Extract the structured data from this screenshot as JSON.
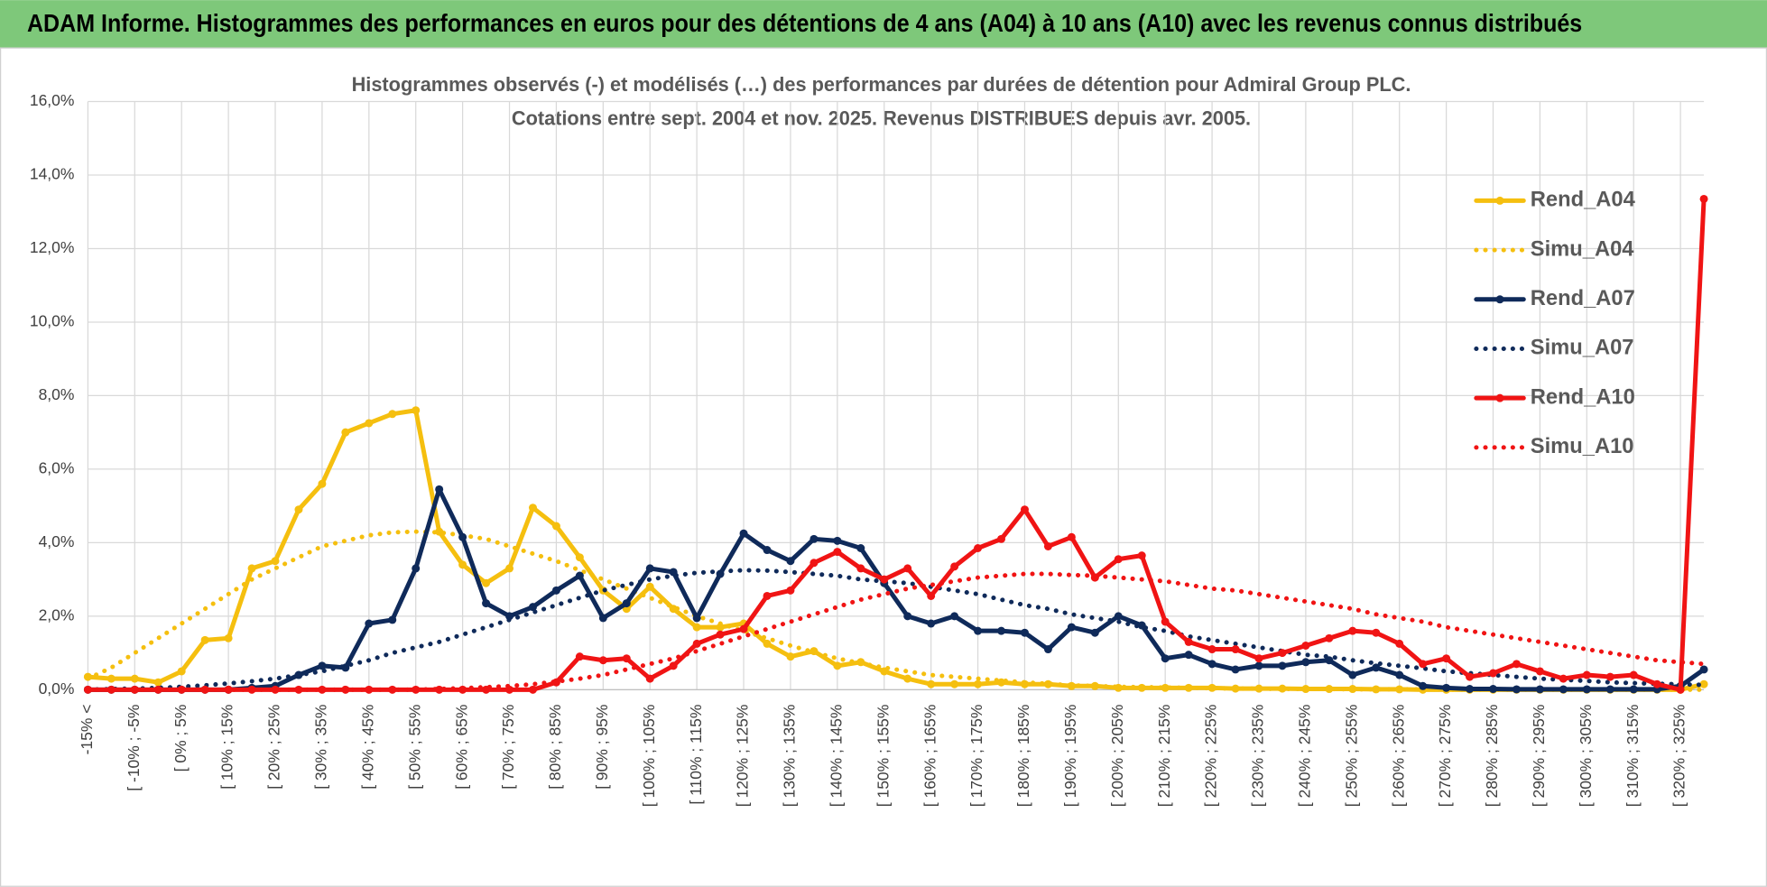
{
  "header": {
    "title": "ADAM Informe. Histogrammes des performances en euros pour des détentions de 4 ans (A04) à 10 ans (A10) avec les revenus connus distribués"
  },
  "chart_data": {
    "type": "line",
    "title": "Histogrammes observés (-) et modélisés (…) des performances par durées de détention pour Admiral Group PLC.",
    "subtitle": "Cotations entre sept. 2004 et nov. 2025. Revenus DISTRIBUES depuis avr. 2005.",
    "categories": [
      "-15% <",
      null,
      "[ -10% ; -5%",
      null,
      "[ 0% ; 5%",
      null,
      "[ 10% ; 15%",
      null,
      "[ 20% ; 25%",
      null,
      "[ 30% ; 35%",
      null,
      "[ 40% ; 45%",
      null,
      "[ 50% ; 55%",
      null,
      "[ 60% ; 65%",
      null,
      "[ 70% ; 75%",
      null,
      "[ 80% ; 85%",
      null,
      "[ 90% ; 95%",
      null,
      "[ 100% ; 105%",
      null,
      "[ 110% ; 115%",
      null,
      "[ 120% ; 125%",
      null,
      "[ 130% ; 135%",
      null,
      "[ 140% ; 145%",
      null,
      "[ 150% ; 155%",
      null,
      "[ 160% ; 165%",
      null,
      "[ 170% ; 175%",
      null,
      "[ 180% ; 185%",
      null,
      "[ 190% ; 195%",
      null,
      "[ 200% ; 205%",
      null,
      "[ 210% ; 215%",
      null,
      "[ 220% ; 225%",
      null,
      "[ 230% ; 235%",
      null,
      "[ 240% ; 245%",
      null,
      "[ 250% ; 255%",
      null,
      "[ 260% ; 265%",
      null,
      "[ 270% ; 275%",
      null,
      "[ 280% ; 285%",
      null,
      "[ 290% ; 295%",
      null,
      "[ 300% ; 305%",
      null,
      "[ 310% ; 315%",
      null,
      "[ 320% ; 325%",
      null
    ],
    "series": [
      {
        "name": "Rend_A04",
        "color": "#f5bf0f",
        "line_style": "solid",
        "markers": true,
        "values": [
          0.35,
          0.3,
          0.3,
          0.2,
          0.5,
          1.35,
          1.4,
          3.3,
          3.5,
          4.9,
          5.6,
          7.0,
          7.25,
          7.5,
          7.6,
          4.3,
          3.4,
          2.9,
          3.3,
          4.95,
          4.45,
          3.6,
          2.7,
          2.2,
          2.8,
          2.2,
          1.7,
          1.7,
          1.8,
          1.25,
          0.9,
          1.05,
          0.65,
          0.75,
          0.5,
          0.3,
          0.15,
          0.15,
          0.15,
          0.2,
          0.15,
          0.15,
          0.1,
          0.1,
          0.05,
          0.05,
          0.05,
          0.05,
          0.05,
          0.03,
          0.03,
          0.03,
          0.02,
          0.02,
          0.02,
          0.01,
          0.01,
          0,
          0,
          0,
          0,
          0,
          0,
          0,
          0,
          0,
          0,
          0,
          0,
          0.15
        ]
      },
      {
        "name": "Simu_A04",
        "color": "#f5bf0f",
        "line_style": "dotted",
        "markers": false,
        "values": [
          0.3,
          0.6,
          1.0,
          1.4,
          1.8,
          2.2,
          2.6,
          3.0,
          3.3,
          3.6,
          3.9,
          4.05,
          4.2,
          4.28,
          4.3,
          4.28,
          4.2,
          4.1,
          3.9,
          3.7,
          3.5,
          3.25,
          3.0,
          2.75,
          2.5,
          2.25,
          2.0,
          1.8,
          1.6,
          1.4,
          1.2,
          1.02,
          0.85,
          0.72,
          0.6,
          0.5,
          0.4,
          0.35,
          0.3,
          0.25,
          0.2,
          0.16,
          0.12,
          0.1,
          0.08,
          0.07,
          0.06,
          0.05,
          0.04,
          0.03,
          0.03,
          0.02,
          0.02,
          0.02,
          0.01,
          0.01,
          0.01,
          0.01,
          0,
          0,
          0,
          0,
          0,
          0,
          0,
          0,
          0,
          0,
          0,
          0
        ]
      },
      {
        "name": "Rend_A07",
        "color": "#0f2a5a",
        "line_style": "solid",
        "markers": true,
        "values": [
          0,
          0,
          0,
          0,
          0,
          0,
          0,
          0.05,
          0.1,
          0.4,
          0.65,
          0.6,
          1.8,
          1.9,
          3.3,
          5.45,
          4.15,
          2.35,
          2.0,
          2.25,
          2.7,
          3.1,
          1.95,
          2.35,
          3.3,
          3.2,
          1.95,
          3.15,
          4.25,
          3.8,
          3.5,
          4.1,
          4.05,
          3.85,
          2.9,
          2.0,
          1.8,
          2.0,
          1.6,
          1.6,
          1.55,
          1.1,
          1.7,
          1.55,
          2.0,
          1.75,
          0.85,
          0.95,
          0.7,
          0.55,
          0.65,
          0.65,
          0.75,
          0.8,
          0.4,
          0.6,
          0.4,
          0.1,
          0.05,
          0.02,
          0.02,
          0.01,
          0.01,
          0.01,
          0.01,
          0.01,
          0.01,
          0.01,
          0.1,
          0.55
        ]
      },
      {
        "name": "Simu_A07",
        "color": "#0f2a5a",
        "line_style": "dotted",
        "markers": false,
        "values": [
          0,
          0.02,
          0.03,
          0.05,
          0.08,
          0.12,
          0.17,
          0.23,
          0.3,
          0.4,
          0.5,
          0.65,
          0.8,
          1.0,
          1.15,
          1.3,
          1.5,
          1.7,
          1.9,
          2.1,
          2.3,
          2.5,
          2.7,
          2.85,
          3.0,
          3.1,
          3.18,
          3.22,
          3.25,
          3.24,
          3.2,
          3.15,
          3.1,
          3.0,
          2.95,
          2.9,
          2.8,
          2.7,
          2.6,
          2.45,
          2.3,
          2.2,
          2.05,
          1.95,
          1.85,
          1.7,
          1.6,
          1.45,
          1.35,
          1.25,
          1.15,
          1.05,
          0.95,
          0.9,
          0.8,
          0.72,
          0.65,
          0.58,
          0.5,
          0.45,
          0.4,
          0.35,
          0.3,
          0.27,
          0.24,
          0.2,
          0.18,
          0.16,
          0.15,
          0.13
        ]
      },
      {
        "name": "Rend_A10",
        "color": "#f01414",
        "line_style": "solid",
        "markers": true,
        "values": [
          0,
          0,
          0,
          0,
          0,
          0,
          0,
          0,
          0,
          0,
          0,
          0,
          0,
          0,
          0,
          0,
          0,
          0,
          0,
          0,
          0.2,
          0.9,
          0.8,
          0.85,
          0.3,
          0.65,
          1.25,
          1.5,
          1.65,
          2.55,
          2.7,
          3.45,
          3.75,
          3.3,
          3.0,
          3.3,
          2.55,
          3.35,
          3.85,
          4.1,
          4.9,
          3.9,
          4.15,
          3.05,
          3.55,
          3.65,
          1.85,
          1.3,
          1.1,
          1.1,
          0.85,
          1.0,
          1.2,
          1.4,
          1.6,
          1.55,
          1.25,
          0.7,
          0.85,
          0.35,
          0.45,
          0.7,
          0.5,
          0.3,
          0.4,
          0.35,
          0.4,
          0.15,
          0,
          13.35
        ]
      },
      {
        "name": "Simu_A10",
        "color": "#f01414",
        "line_style": "dotted",
        "markers": false,
        "values": [
          0,
          0,
          0,
          0,
          0,
          0,
          0,
          0,
          0,
          0,
          0,
          0,
          0,
          0,
          0,
          0.02,
          0.04,
          0.07,
          0.1,
          0.15,
          0.22,
          0.3,
          0.4,
          0.55,
          0.7,
          0.85,
          1.05,
          1.25,
          1.45,
          1.65,
          1.85,
          2.05,
          2.25,
          2.45,
          2.6,
          2.75,
          2.85,
          2.95,
          3.05,
          3.1,
          3.15,
          3.15,
          3.12,
          3.1,
          3.05,
          3.0,
          2.95,
          2.85,
          2.75,
          2.7,
          2.6,
          2.5,
          2.4,
          2.3,
          2.2,
          2.05,
          1.95,
          1.85,
          1.7,
          1.6,
          1.5,
          1.4,
          1.3,
          1.2,
          1.1,
          1.0,
          0.9,
          0.8,
          0.75,
          0.7
        ]
      }
    ],
    "ylim": [
      0,
      16
    ],
    "yticks": [
      {
        "value": 0,
        "label": "0,0%"
      },
      {
        "value": 2,
        "label": "2,0%"
      },
      {
        "value": 4,
        "label": "4,0%"
      },
      {
        "value": 6,
        "label": "6,0%"
      },
      {
        "value": 8,
        "label": "8,0%"
      },
      {
        "value": 10,
        "label": "10,0%"
      },
      {
        "value": 12,
        "label": "12,0%"
      },
      {
        "value": 14,
        "label": "14,0%"
      },
      {
        "value": 16,
        "label": "16,0%"
      }
    ],
    "grid": true,
    "legend": "right"
  }
}
